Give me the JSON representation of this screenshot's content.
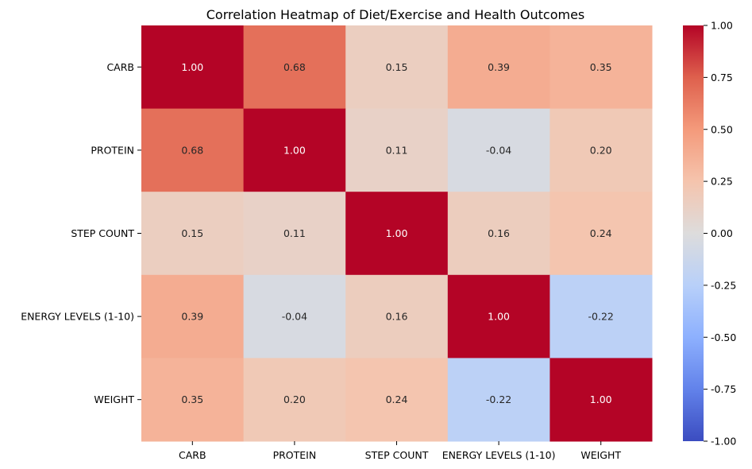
{
  "chart_data": {
    "type": "heatmap",
    "title": "Correlation Heatmap of Diet/Exercise and Health Outcomes",
    "xlabel": "",
    "ylabel": "",
    "x_categories": [
      "CARB",
      "PROTEIN",
      "STEP COUNT",
      "ENERGY LEVELS (1-10)",
      "WEIGHT"
    ],
    "y_categories": [
      "CARB",
      "PROTEIN",
      "STEP COUNT",
      "ENERGY LEVELS (1-10)",
      "WEIGHT"
    ],
    "values": [
      [
        1.0,
        0.68,
        0.15,
        0.39,
        0.35
      ],
      [
        0.68,
        1.0,
        0.11,
        -0.04,
        0.2
      ],
      [
        0.15,
        0.11,
        1.0,
        0.16,
        0.24
      ],
      [
        0.39,
        -0.04,
        0.16,
        1.0,
        -0.22
      ],
      [
        0.35,
        0.2,
        0.24,
        -0.22,
        1.0
      ]
    ],
    "value_format": "0.00",
    "colormap": "coolwarm",
    "vmin": -1.0,
    "vmax": 1.0,
    "colorbar_ticks": [
      "1.00",
      "0.75",
      "0.50",
      "0.25",
      "0.00",
      "-0.25",
      "-0.50",
      "-0.75",
      "-1.00"
    ],
    "grid": false,
    "colors": {
      "low": "#3b4cc0",
      "mid": "#dddcdc",
      "high": "#b40426"
    }
  }
}
